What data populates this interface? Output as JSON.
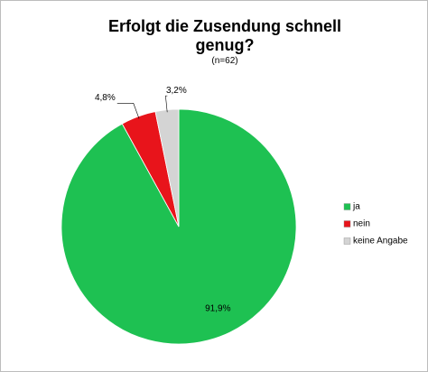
{
  "chart_data": {
    "type": "pie",
    "title": "Erfolgt die Zusendung schnell genug?",
    "subtitle": "(n=62)",
    "categories": [
      "ja",
      "nein",
      "keine Angabe"
    ],
    "values": [
      91.9,
      4.8,
      3.2
    ],
    "value_labels": [
      "91,9%",
      "4,8%",
      "3,2%"
    ],
    "colors": [
      "#1ec152",
      "#e8141b",
      "#d4d4d4"
    ],
    "legend": "right"
  }
}
